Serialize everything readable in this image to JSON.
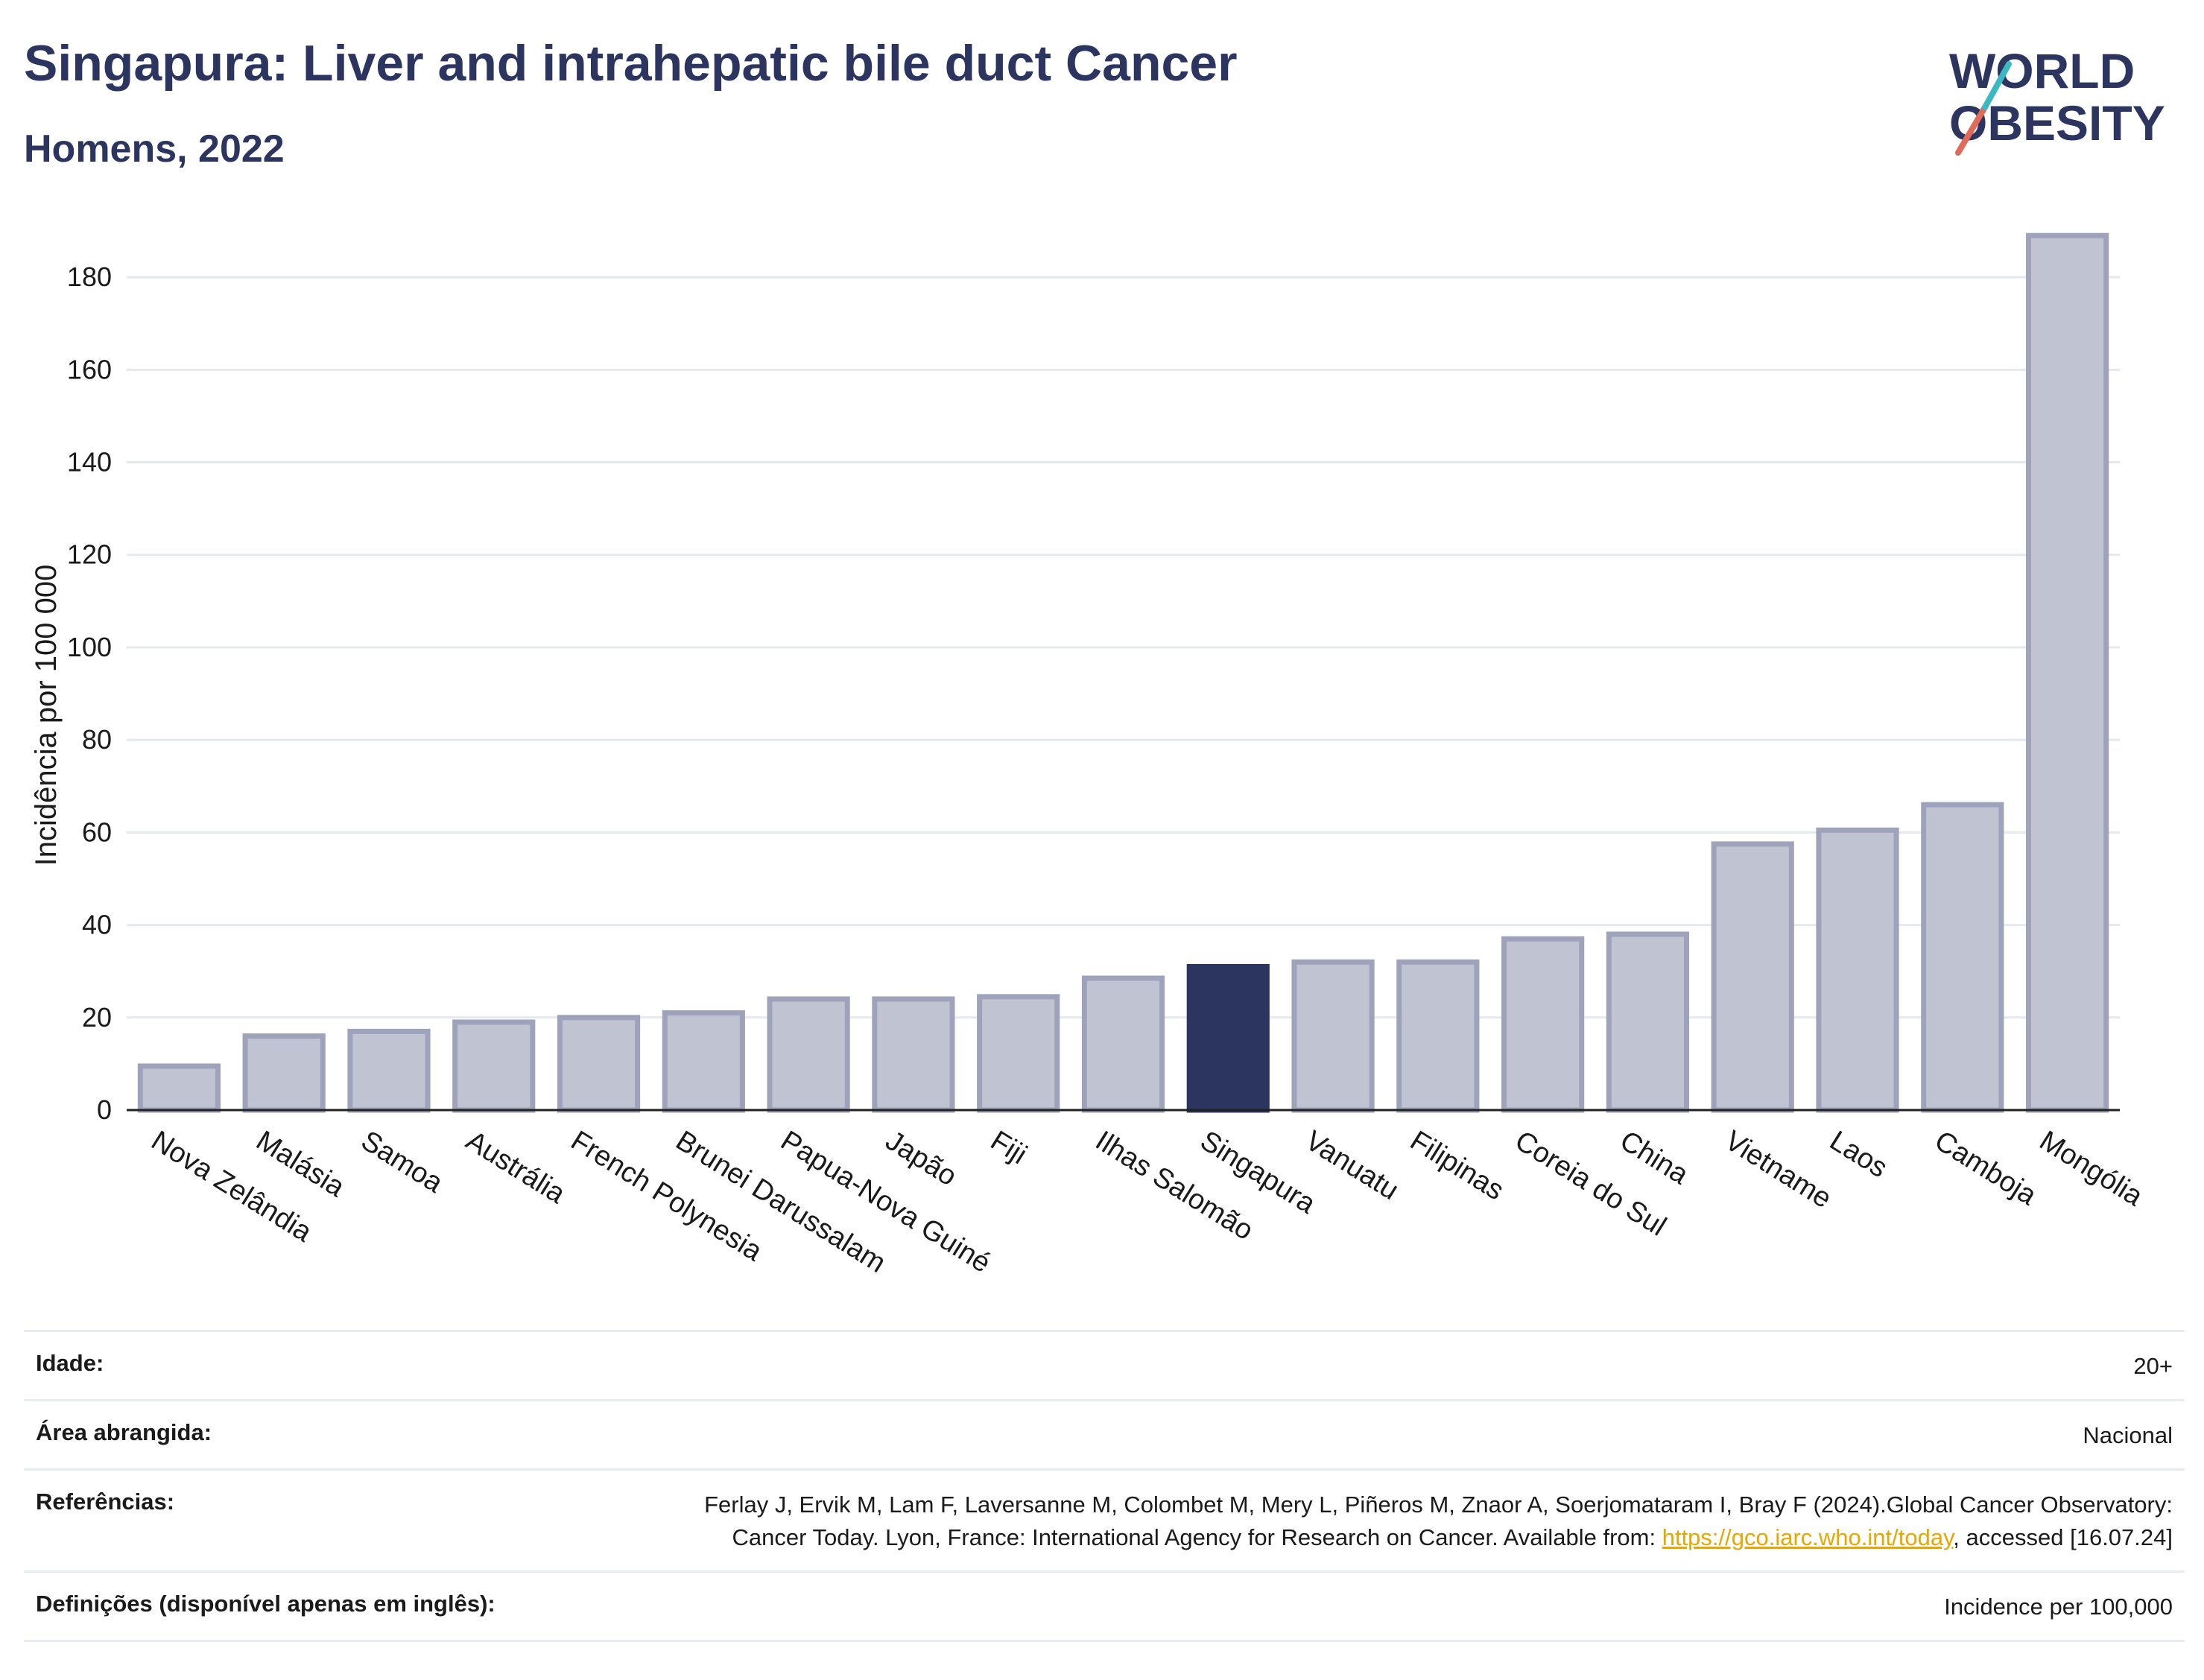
{
  "header": {
    "title": "Singapura: Liver and intrahepatic bile duct Cancer",
    "subtitle": "Homens, 2022"
  },
  "logo": {
    "line1": "WORLD",
    "line2": "OBESITY",
    "colors": {
      "text": "#2b3560",
      "slash_teal": "#3bb8c2",
      "slash_coral": "#e06b5a"
    }
  },
  "chart_data": {
    "type": "bar",
    "ylabel": "Incidência por 100 000",
    "ylim": [
      0,
      190
    ],
    "yticks": [
      0,
      20,
      40,
      60,
      80,
      100,
      120,
      140,
      160,
      180
    ],
    "grid": true,
    "highlight": "Singapura",
    "colors": {
      "bar": "#c0c3d1",
      "bar_stroke": "#9ea3bb",
      "highlight": "#2b3560",
      "grid": "#e5e9ef"
    },
    "categories": [
      "Nova Zelândia",
      "Malásia",
      "Samoa",
      "Austrália",
      "French Polynesia",
      "Brunei Darussalam",
      "Papua-Nova Guiné",
      "Japão",
      "Fiji",
      "Ilhas Salomão",
      "Singapura",
      "Vanuatu",
      "Filipinas",
      "Coreia do Sul",
      "China",
      "Vietname",
      "Laos",
      "Camboja",
      "Mongólia"
    ],
    "values": [
      9.5,
      16,
      17,
      19,
      20,
      21,
      24,
      24,
      24.5,
      28.5,
      31,
      32,
      32,
      37,
      38,
      57.5,
      60.5,
      66,
      189
    ]
  },
  "meta": {
    "age_label": "Idade:",
    "age_value": "20+",
    "area_label": "Área abrangida:",
    "area_value": "Nacional",
    "ref_label": "Referências:",
    "ref_text_1": "Ferlay J, Ervik M, Lam F, Laversanne M, Colombet M, Mery L, Piñeros M, Znaor A, Soerjomataram I, Bray F (2024).Global Cancer Observatory: Cancer Today. Lyon, France: International Agency for Research on Cancer. Available from: ",
    "ref_link": "https://gco.iarc.who.int/today",
    "ref_text_2": ", accessed [16.07.24]",
    "def_label": "Definições (disponível apenas em inglês):",
    "def_value": "Incidence per 100,000"
  }
}
